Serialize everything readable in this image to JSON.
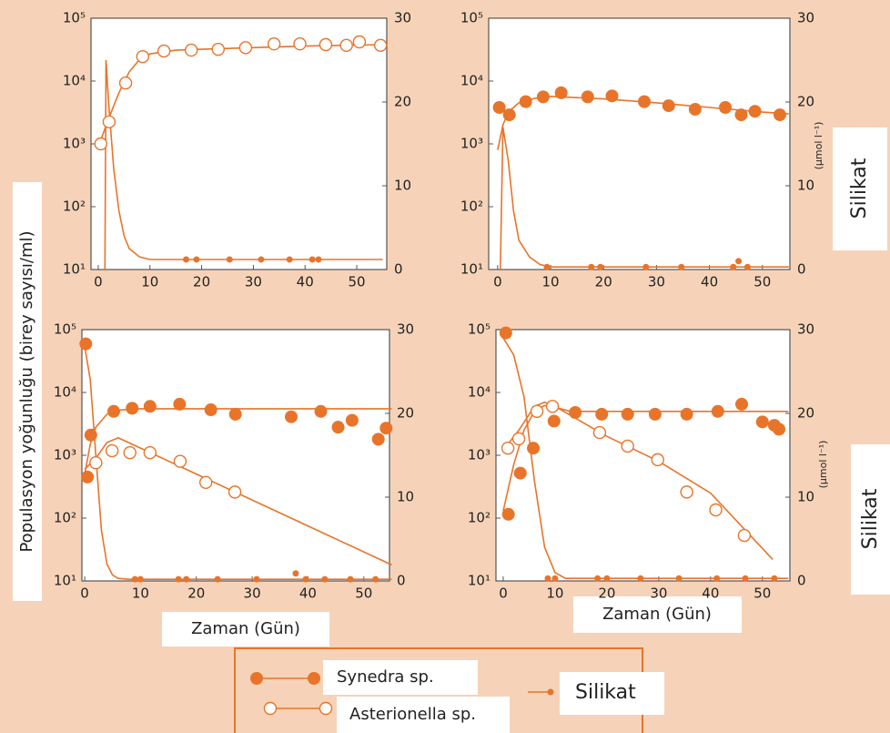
{
  "ylabel": "Populasyon yoğunluğu (birey sayısı/ml)",
  "legend": [
    {
      "label": "Synedra sp.",
      "marker": "filled"
    },
    {
      "label": "Asterionella sp.",
      "marker": "open"
    },
    {
      "label": "Silikat",
      "marker": "small"
    }
  ],
  "chart_data": [
    {
      "type": "line",
      "log_y": true,
      "xlim": [
        -1.4,
        55.8
      ],
      "ylim": [
        10,
        100000
      ],
      "y2lim": [
        0,
        30
      ],
      "xticks": [
        0,
        10,
        20,
        30,
        40,
        50
      ],
      "yticks": [
        {
          "value": 10,
          "label": "10¹"
        },
        {
          "value": 100,
          "label": "10²"
        },
        {
          "value": 1000,
          "label": "10³"
        },
        {
          "value": 10000,
          "label": "10⁴"
        },
        {
          "value": 100000,
          "label": "10⁵"
        }
      ],
      "y2ticks": [
        0,
        10,
        20,
        30
      ],
      "series": [
        {
          "mode": "markers",
          "marker": "open",
          "color": "#e8742a",
          "x": [
            0.5,
            2.1,
            5.3,
            8.6,
            12.7,
            18,
            23.2,
            28.5,
            34,
            39,
            44,
            48,
            50.5,
            54.6
          ],
          "values": [
            1000,
            2240,
            9300,
            24500,
            30000,
            31000,
            32000,
            34000,
            39000,
            39000,
            38000,
            37000,
            42000,
            37000
          ]
        },
        {
          "mode": "markers",
          "marker": "small",
          "axis": "y2",
          "color": "#e8742a",
          "x": [
            17,
            19,
            25.4,
            31.5,
            37,
            41.4,
            42.6
          ],
          "values": [
            1.2,
            1.2,
            1.2,
            1.2,
            1.2,
            1.2,
            1.2
          ]
        },
        {
          "mode": "line",
          "color": "#e8742a",
          "x": [
            0,
            2,
            4,
            6,
            8,
            10,
            15,
            20,
            30,
            40,
            55
          ],
          "values": [
            900,
            2500,
            6500,
            14000,
            22000,
            27000,
            31000,
            32000,
            34000,
            36000,
            38000
          ]
        },
        {
          "mode": "line",
          "axis": "y2",
          "color": "#e8742a",
          "x": [
            1.3,
            1.5,
            2,
            3,
            4,
            5,
            6,
            8,
            10,
            20,
            55
          ],
          "values": [
            0,
            25,
            20,
            12,
            7,
            4,
            2.5,
            1.5,
            1.2,
            1.2,
            1.2
          ]
        }
      ]
    },
    {
      "type": "line",
      "log_y": true,
      "xlim": [
        -1.7,
        55.2
      ],
      "ylim": [
        10,
        100000
      ],
      "y2lim": [
        0,
        30
      ],
      "xticks": [
        0,
        10,
        20,
        30,
        40,
        50
      ],
      "yticks": [
        {
          "value": 10,
          "label": "10¹"
        },
        {
          "value": 100,
          "label": "10²"
        },
        {
          "value": 1000,
          "label": "10³"
        },
        {
          "value": 10000,
          "label": "10⁴"
        },
        {
          "value": 100000,
          "label": "10⁵"
        }
      ],
      "y2ticks": [
        0,
        10,
        20,
        30
      ],
      "y2label": "Silikat",
      "y2unit": "(μmol l⁻¹)",
      "series": [
        {
          "mode": "markers",
          "marker": "filled",
          "color": "#e8742a",
          "x": [
            0.3,
            2.2,
            5.3,
            8.6,
            12,
            17,
            21.6,
            27.7,
            32.3,
            37.3,
            43,
            46,
            48.6,
            53.3
          ],
          "values": [
            3800,
            2900,
            4700,
            5600,
            6500,
            5600,
            5800,
            4700,
            4050,
            3550,
            3800,
            2900,
            3300,
            2900
          ]
        },
        {
          "mode": "markers",
          "marker": "small",
          "axis": "y2",
          "color": "#e8742a",
          "x": [
            9.3,
            17.7,
            19.4,
            28,
            34.7,
            44.5,
            45.5,
            47.2
          ],
          "values": [
            0.3,
            0.3,
            0.3,
            0.3,
            0.3,
            0.3,
            1,
            0.3
          ]
        },
        {
          "mode": "line",
          "color": "#e8742a",
          "x": [
            0,
            1,
            2,
            4,
            7,
            10,
            20,
            30,
            40,
            50,
            55
          ],
          "values": [
            800,
            2000,
            3200,
            4500,
            5300,
            5700,
            5200,
            4500,
            3800,
            3200,
            3000
          ]
        },
        {
          "mode": "line",
          "axis": "y2",
          "color": "#e8742a",
          "x": [
            0.5,
            1,
            2,
            3,
            4,
            6,
            8,
            10,
            55
          ],
          "values": [
            0,
            17,
            13,
            7,
            3.5,
            1.5,
            0.6,
            0.3,
            0.3
          ]
        }
      ]
    },
    {
      "type": "line",
      "log_y": true,
      "xlim": [
        -0.5,
        54.6
      ],
      "ylim": [
        10,
        100000
      ],
      "y2lim": [
        0,
        30
      ],
      "xticks": [
        0,
        10,
        20,
        30,
        40,
        50
      ],
      "yticks": [
        {
          "value": 10,
          "label": "10¹"
        },
        {
          "value": 100,
          "label": "10²"
        },
        {
          "value": 1000,
          "label": "10³"
        },
        {
          "value": 10000,
          "label": "10⁴"
        },
        {
          "value": 100000,
          "label": "10⁵"
        }
      ],
      "y2ticks": [
        0,
        10,
        20,
        30
      ],
      "xlabel": "Zaman (Gün)",
      "series": [
        {
          "mode": "markers",
          "marker": "filled",
          "color": "#e8742a",
          "x": [
            0.5,
            1.1,
            5.2,
            8.5,
            11.7,
            17,
            22.6,
            27,
            37,
            42.3,
            45.4,
            47.9,
            52.6,
            54
          ],
          "values": [
            450,
            2100,
            5000,
            5600,
            6000,
            6500,
            5300,
            4500,
            4100,
            5000,
            2800,
            3600,
            1800,
            2700
          ]
        },
        {
          "mode": "markers",
          "marker": "open",
          "color": "#e8742a",
          "x": [
            2,
            4.9,
            8.1,
            11.7,
            17.1,
            21.7,
            26.9
          ],
          "values": [
            760,
            1180,
            1100,
            1100,
            800,
            370,
            260
          ]
        },
        {
          "mode": "markers",
          "marker": "small",
          "axis": "y2",
          "color": "#e8742a",
          "x": [
            9,
            10,
            16.8,
            18.2,
            23.8,
            30.8,
            37.8,
            39.6,
            43,
            47.6,
            52.1
          ],
          "values": [
            0.2,
            0.2,
            0.2,
            0.2,
            0.2,
            0.2,
            0.9,
            0.2,
            0.2,
            0.2,
            0.2
          ]
        },
        {
          "mode": "markers",
          "marker": "filled",
          "axis": "y2",
          "color": "#e8742a",
          "x": [
            0.2
          ],
          "values": [
            28.3
          ]
        },
        {
          "mode": "line",
          "color": "#e8742a",
          "x": [
            0,
            1,
            2,
            4,
            6,
            8,
            10,
            20,
            55
          ],
          "values": [
            500,
            1500,
            2800,
            4500,
            5200,
            5400,
            5500,
            5500,
            5500
          ]
        },
        {
          "mode": "line",
          "color": "#e8742a",
          "x": [
            0,
            2,
            4,
            6,
            10,
            20,
            30,
            40,
            55
          ],
          "values": [
            600,
            900,
            1600,
            1900,
            1300,
            503,
            194,
            75,
            18
          ]
        },
        {
          "mode": "line",
          "axis": "y2",
          "color": "#e8742a",
          "x": [
            0,
            1,
            2,
            3,
            4,
            5,
            6,
            8,
            55
          ],
          "values": [
            28,
            24,
            15,
            6,
            2,
            0.7,
            0.3,
            0.2,
            0.2
          ]
        }
      ]
    },
    {
      "type": "line",
      "log_y": true,
      "xlim": [
        -1.4,
        55.3
      ],
      "ylim": [
        10,
        100000
      ],
      "y2lim": [
        0,
        30
      ],
      "xticks": [
        0,
        10,
        20,
        30,
        40,
        50
      ],
      "yticks": [
        {
          "value": 10,
          "label": "10¹"
        },
        {
          "value": 100,
          "label": "10²"
        },
        {
          "value": 1000,
          "label": "10³"
        },
        {
          "value": 10000,
          "label": "10⁴"
        },
        {
          "value": 100000,
          "label": "10⁵"
        }
      ],
      "y2ticks": [
        0,
        10,
        20,
        30
      ],
      "xlabel": "Zaman (Gün)",
      "y2label": "Silikat",
      "y2unit": "(μmol l⁻¹)",
      "series": [
        {
          "mode": "markers",
          "marker": "filled",
          "color": "#e8742a",
          "x": [
            1,
            3.3,
            5.8,
            9.8,
            13.9,
            19,
            24,
            29.3,
            35.4,
            41.4,
            46,
            50,
            52.3,
            53.2
          ],
          "values": [
            115,
            520,
            1300,
            3500,
            4800,
            4500,
            4500,
            4500,
            4500,
            5000,
            6500,
            3400,
            3000,
            2600
          ]
        },
        {
          "mode": "markers",
          "marker": "open",
          "color": "#e8742a",
          "x": [
            0.9,
            3,
            6.5,
            9.5,
            18.6,
            24,
            29.8,
            35.4,
            41,
            46.5
          ],
          "values": [
            1300,
            1830,
            5000,
            6000,
            2300,
            1400,
            850,
            260,
            135,
            53
          ]
        },
        {
          "mode": "markers",
          "marker": "small",
          "axis": "y2",
          "color": "#e8742a",
          "x": [
            8.6,
            10,
            18.2,
            20,
            26.5,
            33.9,
            41.2,
            46.7,
            52.3
          ],
          "values": [
            0.3,
            0.3,
            0.3,
            0.3,
            0.3,
            0.3,
            0.3,
            0.3,
            0.3
          ]
        },
        {
          "mode": "markers",
          "marker": "filled",
          "axis": "y2",
          "color": "#e8742a",
          "x": [
            0.5
          ],
          "values": [
            29.6
          ]
        },
        {
          "mode": "line",
          "color": "#e8742a",
          "x": [
            0,
            2,
            4,
            6,
            8,
            10,
            13,
            20,
            55
          ],
          "values": [
            130,
            700,
            2500,
            5000,
            6200,
            5800,
            5000,
            5000,
            5000
          ]
        },
        {
          "mode": "line",
          "color": "#e8742a",
          "x": [
            0,
            3,
            6,
            8,
            10,
            20,
            30,
            40,
            52
          ],
          "values": [
            1200,
            2500,
            6000,
            7000,
            6000,
            2000,
            800,
            250,
            22
          ]
        },
        {
          "mode": "line",
          "axis": "y2",
          "color": "#e8742a",
          "x": [
            0,
            2,
            4,
            6,
            8,
            10,
            12,
            55
          ],
          "values": [
            29,
            27,
            22,
            12,
            4,
            1,
            0.3,
            0.3
          ]
        }
      ]
    }
  ]
}
